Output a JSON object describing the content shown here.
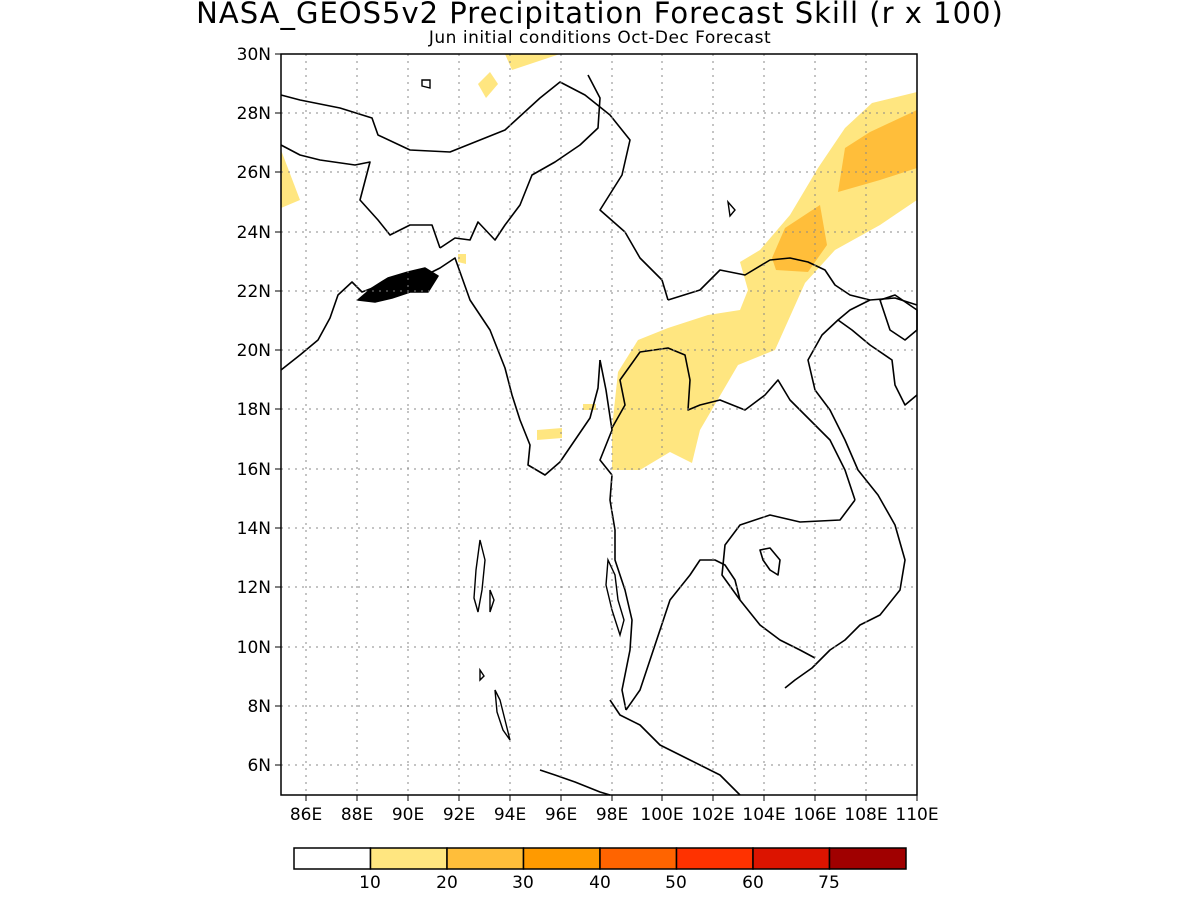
{
  "title": "NASA_GEOS5v2 Precipitation Forecast Skill (r x 100)",
  "subtitle": "Jun initial conditions  Oct-Dec Forecast",
  "map": {
    "lon_range": [
      85,
      110
    ],
    "lat_range": [
      5,
      30
    ],
    "lat_ticks": [
      "30N",
      "28N",
      "26N",
      "24N",
      "22N",
      "20N",
      "18N",
      "16N",
      "14N",
      "12N",
      "10N",
      "8N",
      "6N"
    ],
    "lon_ticks": [
      "86E",
      "88E",
      "90E",
      "92E",
      "94E",
      "96E",
      "98E",
      "100E",
      "102E",
      "104E",
      "106E",
      "108E",
      "110E"
    ]
  },
  "colorbar": {
    "colors": [
      "#ffffff",
      "#ffe680",
      "#ffbe3a",
      "#ff9a00",
      "#ff6400",
      "#ff3200",
      "#dc1400",
      "#a00000"
    ],
    "labels": [
      "10",
      "20",
      "30",
      "40",
      "50",
      "60",
      "75"
    ]
  },
  "chart_data": {
    "type": "heatmap",
    "title": "NASA_GEOS5v2 Precipitation Forecast Skill (r x 100)",
    "subtitle": "Jun initial conditions  Oct-Dec Forecast",
    "x_range": [
      85,
      110
    ],
    "y_range": [
      5,
      30
    ],
    "levels": [
      10,
      20,
      30,
      40,
      50,
      60,
      75
    ],
    "grid": true,
    "regions": [
      {
        "level_range": "10-20",
        "area": "northern Thailand / Laos (approx. 98-104E, 16-22N)"
      },
      {
        "level_range": "10-20",
        "area": "southern China band (approx. 102-110E, 22-29N)"
      },
      {
        "level_range": "20-30",
        "area": "southern China (approx. 104-110E, 23-28N)"
      }
    ]
  }
}
